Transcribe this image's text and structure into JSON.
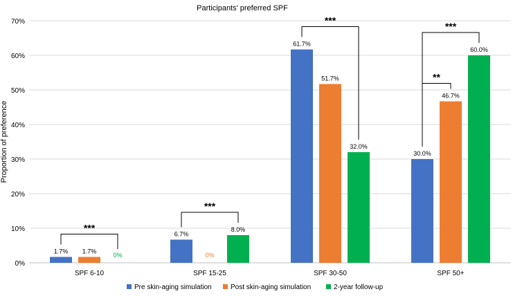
{
  "chart_data": {
    "type": "bar",
    "title": "Participants' preferred SPF",
    "xlabel": "",
    "ylabel": "Proportion of preference",
    "ylim": [
      0,
      70
    ],
    "yticks": [
      0,
      10,
      20,
      30,
      40,
      50,
      60,
      70
    ],
    "ytick_labels": [
      "0%",
      "10%",
      "20%",
      "30%",
      "40%",
      "50%",
      "60%",
      "70%"
    ],
    "grid": true,
    "legend_position": "bottom",
    "categories": [
      "SPF 6-10",
      "SPF 15-25",
      "SPF 30-50",
      "SPF 50+"
    ],
    "series": [
      {
        "name": "Pre skin-aging simulation",
        "color": "#4472C4",
        "values": [
          1.7,
          6.7,
          61.7,
          30.0
        ],
        "labels": [
          "1.7%",
          "6.7%",
          "61.7%",
          "30.0%"
        ]
      },
      {
        "name": "Post skin-aging simulation",
        "color": "#ED7D31",
        "values": [
          1.7,
          0,
          51.7,
          46.7
        ],
        "labels": [
          "1.7%",
          "0%",
          "51.7%",
          "46.7%"
        ]
      },
      {
        "name": "2-year follow-up",
        "color": "#00B050",
        "values": [
          0,
          8.0,
          32.0,
          60.0
        ],
        "labels": [
          "0%",
          "8.0%",
          "32.0%",
          "60.0%"
        ]
      }
    ],
    "significance": [
      {
        "category": 0,
        "from_series": 0,
        "to_series": 2,
        "label": "***"
      },
      {
        "category": 1,
        "from_series": 0,
        "to_series": 2,
        "label": "***"
      },
      {
        "category": 2,
        "from_series": 0,
        "to_series": 2,
        "label": "***"
      },
      {
        "category": 3,
        "from_series": 0,
        "to_series": 2,
        "label": "***"
      },
      {
        "category": 3,
        "from_series": 0,
        "to_series": 1,
        "label": "**"
      }
    ]
  }
}
